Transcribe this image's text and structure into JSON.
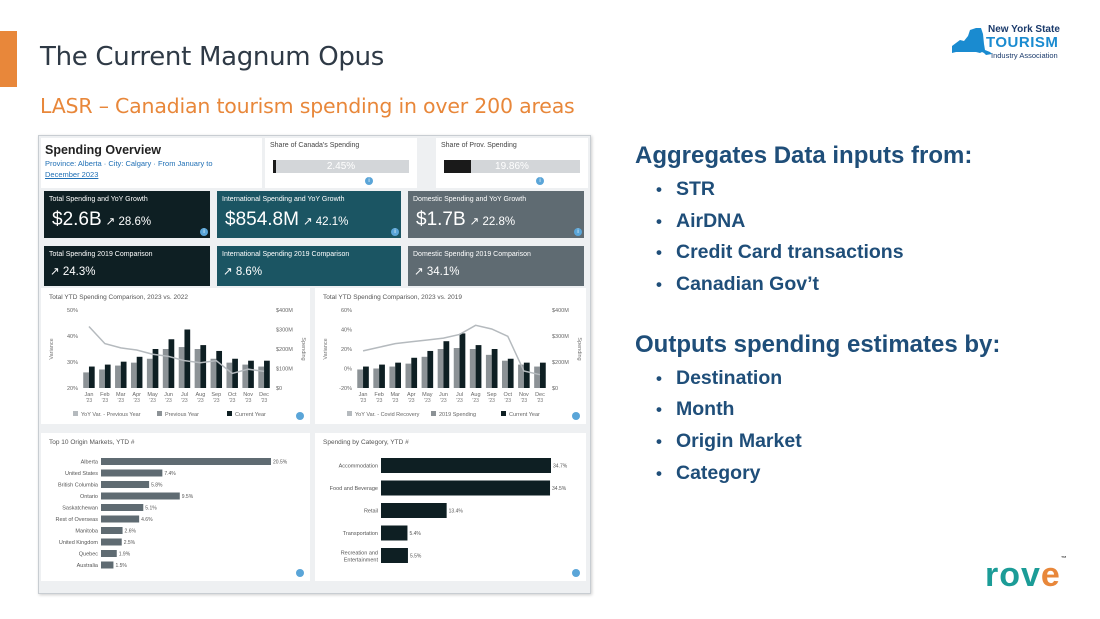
{
  "slide": {
    "title": "The Current Magnum Opus",
    "subtitle": "LASR – Canadian tourism spending in over 200 areas"
  },
  "logo": {
    "line1": "New York State",
    "line2": "TOURISM",
    "line3": "Industry Association"
  },
  "right": {
    "heading1": "Aggregates Data inputs from:",
    "inputs": [
      "STR",
      "AirDNA",
      "Credit Card transactions",
      "Canadian Gov’t"
    ],
    "heading2": "Outputs spending estimates by:",
    "outputs": [
      "Destination",
      "Month",
      "Origin Market",
      "Category"
    ]
  },
  "brand": {
    "rove_a": "rov",
    "rove_b": "e",
    "tm": "™"
  },
  "colors": {
    "accent": "#e8873a",
    "heading": "#1f4e79",
    "dark": "#0e1f23",
    "teal": "#1b5563",
    "grey": "#5f6b72",
    "rove": "#1b9c97"
  },
  "dashboard": {
    "overview_title": "Spending Overview",
    "overview_filter_line1": "Province: Alberta · City: Calgary · From January to",
    "overview_filter_line2": "December 2023",
    "share_canada": {
      "label": "Share of Canada's Spending",
      "value": "2.45%",
      "fraction": 0.0245
    },
    "share_prov": {
      "label": "Share of Prov. Spending",
      "value": "19.86%",
      "fraction": 0.1986
    },
    "info_icon": "i",
    "kpis": [
      {
        "label": "Total Spending and YoY Growth",
        "value": "$2.6B",
        "growth": "↗ 28.6%"
      },
      {
        "label": "International Spending and YoY Growth",
        "value": "$854.8M",
        "growth": "↗ 42.1%"
      },
      {
        "label": "Domestic Spending and YoY Growth",
        "value": "$1.7B",
        "growth": "↗ 22.8%"
      }
    ],
    "kpis2019": [
      {
        "label": "Total Spending 2019 Comparison",
        "value": "↗ 24.3%"
      },
      {
        "label": "International Spending 2019 Comparison",
        "value": "↗ 8.6%"
      },
      {
        "label": "Domestic Spending 2019 Comparison",
        "value": "↗ 34.1%"
      }
    ]
  },
  "chart_data": [
    {
      "type": "bar",
      "title": "Total YTD Spending Comparison, 2023 vs. 2022",
      "ylabel": "Variance",
      "y2label": "Spending",
      "categories": [
        "Jan",
        "Feb",
        "Mar",
        "Apr",
        "May",
        "Jun",
        "Jul",
        "Aug",
        "Sep",
        "Oct",
        "Nov",
        "Dec"
      ],
      "category_years": [
        "'23",
        "'23",
        "'23",
        "'23",
        "'23",
        "'23",
        "'23",
        "'23",
        "'23",
        "'23",
        "'23",
        "'23"
      ],
      "yticks": [
        "50%",
        "40%",
        "30%",
        "20%"
      ],
      "y2ticks": [
        "$400M",
        "$300M",
        "$200M",
        "$100M",
        "$0"
      ],
      "y2lim": [
        0,
        400
      ],
      "series": [
        {
          "name": "Previous Year",
          "kind": "bar",
          "values": [
            80,
            95,
            115,
            130,
            150,
            200,
            210,
            200,
            150,
            130,
            120,
            110
          ]
        },
        {
          "name": "Current Year",
          "kind": "bar",
          "values": [
            110,
            120,
            135,
            160,
            200,
            250,
            300,
            220,
            190,
            150,
            140,
            140
          ]
        },
        {
          "name": "YoY Var. - Previous Year",
          "kind": "line",
          "values": [
            44,
            36,
            34,
            33,
            31,
            30,
            28,
            27,
            28,
            22,
            24,
            23
          ]
        }
      ],
      "legend": [
        "YoY Var. - Previous Year",
        "Previous Year",
        "Current Year"
      ]
    },
    {
      "type": "bar",
      "title": "Total YTD Spending Comparison, 2023 vs. 2019",
      "ylabel": "Variance",
      "y2label": "Spending",
      "categories": [
        "Jan",
        "Feb",
        "Mar",
        "Apr",
        "May",
        "Jun",
        "Jul",
        "Aug",
        "Sep",
        "Oct",
        "Nov",
        "Dec"
      ],
      "category_years": [
        "'23",
        "'23",
        "'23",
        "'23",
        "'23",
        "'23",
        "'23",
        "'23",
        "'23",
        "'23",
        "'23",
        "'23"
      ],
      "yticks": [
        "60%",
        "40%",
        "20%",
        "0%",
        "-20%"
      ],
      "y2ticks": [
        "$400M",
        "$300M",
        "$200M",
        "$0"
      ],
      "y2lim": [
        0,
        400
      ],
      "series": [
        {
          "name": "2019 Spending",
          "kind": "bar",
          "values": [
            95,
            100,
            110,
            125,
            160,
            200,
            205,
            200,
            170,
            140,
            120,
            110
          ]
        },
        {
          "name": "Current Year",
          "kind": "bar",
          "values": [
            110,
            120,
            130,
            155,
            190,
            240,
            280,
            220,
            200,
            150,
            130,
            130
          ]
        },
        {
          "name": "YoY Var. - Covid Recovery",
          "kind": "line",
          "values": [
            16,
            18,
            20,
            21,
            22,
            23,
            25,
            30,
            28,
            24,
            5,
            3
          ]
        }
      ],
      "legend": [
        "YoY Var. - Covid Recovery",
        "2019 Spending",
        "Current Year"
      ]
    },
    {
      "type": "bar",
      "orientation": "horizontal",
      "title": "Top 10 Origin Markets, YTD #",
      "categories": [
        "Alberta",
        "United States",
        "British Columbia",
        "Ontario",
        "Saskatchewan",
        "Rest of Overseas",
        "Manitoba",
        "United Kingdom",
        "Quebec",
        "Australia"
      ],
      "values": [
        20.5,
        7.4,
        5.8,
        9.5,
        5.1,
        4.6,
        2.6,
        2.5,
        1.9,
        1.5
      ],
      "value_labels": [
        "20.5%",
        "7.4%",
        "5.8%",
        "9.5%",
        "5.1%",
        "4.6%",
        "2.6%",
        "2.5%",
        "1.9%",
        "1.5%"
      ]
    },
    {
      "type": "bar",
      "orientation": "horizontal",
      "title": "Spending by Category, YTD #",
      "categories": [
        "Accommodation",
        "Food and Beverage",
        "Retail",
        "Transportation",
        "Recreation and Entertainment"
      ],
      "values": [
        34.7,
        34.5,
        13.4,
        5.4,
        5.5
      ],
      "value_labels": [
        "34.7%",
        "34.5%",
        "13.4%",
        "5.4%",
        "5.5%"
      ]
    }
  ]
}
